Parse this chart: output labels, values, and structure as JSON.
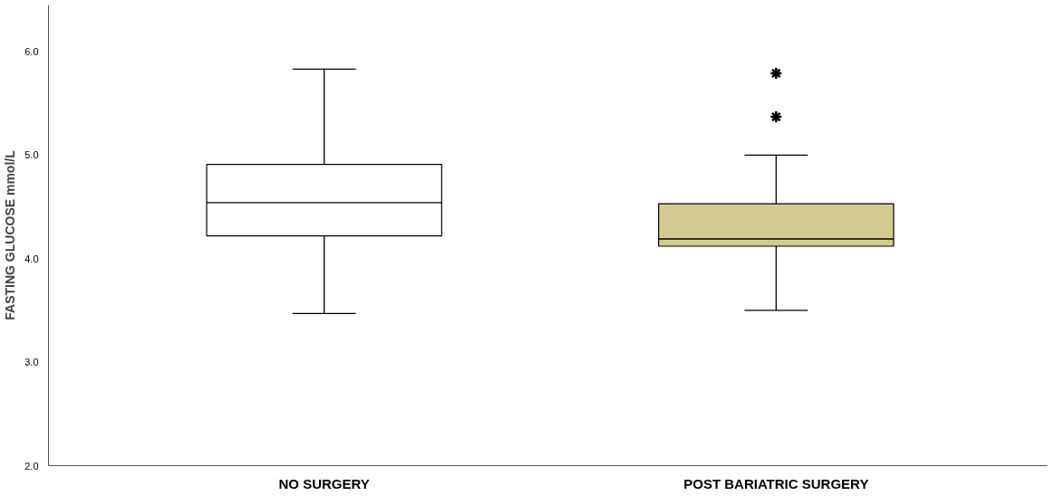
{
  "chart_data": {
    "type": "box",
    "ylabel": "FASTING GLUCOSE mmol/L",
    "categories": [
      "NO SURGERY",
      "POST BARIATRIC SURGERY"
    ],
    "boxes": [
      {
        "low": 3.47,
        "q1": 4.22,
        "median": 4.54,
        "q3": 4.91,
        "high": 5.83
      },
      {
        "low": 3.5,
        "q1": 4.12,
        "median": 4.19,
        "q3": 4.53,
        "high": 5.0,
        "outliers": [
          5.37,
          5.79
        ]
      }
    ],
    "colors": [
      "#ffffff",
      "#d2cc92"
    ],
    "ylim": [
      2.0,
      6.45
    ],
    "yticks": [
      {
        "value": 2,
        "label": "2.0"
      },
      {
        "value": 3,
        "label": "3.0"
      },
      {
        "value": 4,
        "label": "4.0"
      },
      {
        "value": 5,
        "label": "5.0"
      },
      {
        "value": 6,
        "label": "6.0"
      }
    ],
    "grid": false,
    "marker": "star"
  }
}
